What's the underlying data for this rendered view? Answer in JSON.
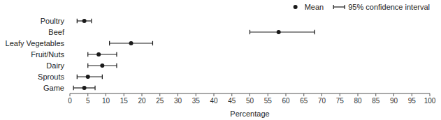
{
  "chart_data": {
    "type": "dot",
    "orientation": "horizontal",
    "categories": [
      "Poultry",
      "Beef",
      "Leafy Vegetables",
      "Fruit/Nuts",
      "Dairy",
      "Sprouts",
      "Game"
    ],
    "series": [
      {
        "name": "Mean",
        "type": "dot",
        "marker": "circle",
        "color": "#1a1a1a",
        "values": [
          4,
          58,
          17,
          8,
          9,
          5,
          4
        ]
      },
      {
        "name": "95% confidence interval",
        "type": "errorbar",
        "color": "#1a1a1a",
        "low": [
          2,
          50,
          11,
          5,
          5,
          2,
          1
        ],
        "high": [
          6,
          68,
          23,
          13,
          13,
          9,
          7
        ]
      }
    ],
    "xlabel": "Percentage",
    "xlim": [
      0,
      100
    ],
    "xticks": [
      0,
      5,
      10,
      15,
      20,
      25,
      30,
      35,
      40,
      45,
      50,
      55,
      60,
      65,
      70,
      75,
      80,
      85,
      90,
      95,
      100
    ],
    "legend": "top-right"
  }
}
